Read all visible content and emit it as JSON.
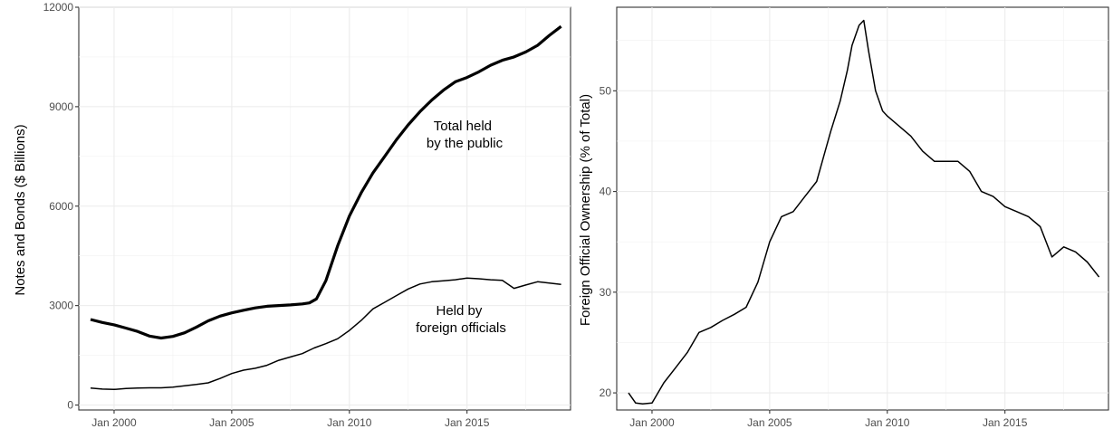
{
  "chart_data": [
    {
      "type": "line",
      "title": "",
      "xlabel": "",
      "ylabel": "Notes and Bonds ($ Billions)",
      "xlim": [
        1998.5,
        2019.4
      ],
      "ylim": [
        -150,
        12000
      ],
      "x_ticks": [
        2000,
        2005,
        2010,
        2015
      ],
      "x_tick_labels": [
        "Jan 2000",
        "Jan 2005",
        "Jan 2010",
        "Jan 2015"
      ],
      "y_ticks": [
        0,
        3000,
        6000,
        9000,
        12000
      ],
      "y_tick_labels": [
        "0",
        "3000",
        "6000",
        "9000",
        "12000"
      ],
      "grid": true,
      "legend": "none",
      "series": [
        {
          "values": [
            [
              1999.0,
              2580
            ],
            [
              1999.5,
              2490
            ],
            [
              2000.0,
              2420
            ],
            [
              2000.5,
              2320
            ],
            [
              2001.0,
              2220
            ],
            [
              2001.5,
              2080
            ],
            [
              2002.0,
              2020
            ],
            [
              2002.5,
              2070
            ],
            [
              2003.0,
              2180
            ],
            [
              2003.5,
              2350
            ],
            [
              2004.0,
              2540
            ],
            [
              2004.5,
              2680
            ],
            [
              2005.0,
              2780
            ],
            [
              2005.5,
              2860
            ],
            [
              2006.0,
              2930
            ],
            [
              2006.5,
              2980
            ],
            [
              2007.0,
              3000
            ],
            [
              2007.5,
              3020
            ],
            [
              2008.0,
              3050
            ],
            [
              2008.3,
              3080
            ],
            [
              2008.6,
              3200
            ],
            [
              2009.0,
              3750
            ],
            [
              2009.5,
              4800
            ],
            [
              2010.0,
              5700
            ],
            [
              2010.5,
              6400
            ],
            [
              2011.0,
              7000
            ],
            [
              2011.5,
              7500
            ],
            [
              2012.0,
              8000
            ],
            [
              2012.5,
              8450
            ],
            [
              2013.0,
              8850
            ],
            [
              2013.5,
              9200
            ],
            [
              2014.0,
              9500
            ],
            [
              2014.5,
              9750
            ],
            [
              2015.0,
              9880
            ],
            [
              2015.5,
              10050
            ],
            [
              2016.0,
              10250
            ],
            [
              2016.5,
              10400
            ],
            [
              2017.0,
              10500
            ],
            [
              2017.5,
              10650
            ],
            [
              2018.0,
              10850
            ],
            [
              2018.5,
              11150
            ],
            [
              2019.0,
              11420
            ]
          ],
          "annotation": "Total held\nby the public"
        },
        {
          "values": [
            [
              1999.0,
              510
            ],
            [
              1999.5,
              480
            ],
            [
              2000.0,
              470
            ],
            [
              2000.5,
              500
            ],
            [
              2001.0,
              510
            ],
            [
              2001.5,
              520
            ],
            [
              2002.0,
              520
            ],
            [
              2002.5,
              540
            ],
            [
              2003.0,
              580
            ],
            [
              2003.5,
              620
            ],
            [
              2004.0,
              670
            ],
            [
              2004.5,
              800
            ],
            [
              2005.0,
              950
            ],
            [
              2005.5,
              1050
            ],
            [
              2006.0,
              1110
            ],
            [
              2006.5,
              1200
            ],
            [
              2007.0,
              1350
            ],
            [
              2007.5,
              1450
            ],
            [
              2008.0,
              1550
            ],
            [
              2008.5,
              1720
            ],
            [
              2009.0,
              1850
            ],
            [
              2009.5,
              2000
            ],
            [
              2010.0,
              2250
            ],
            [
              2010.5,
              2550
            ],
            [
              2011.0,
              2900
            ],
            [
              2011.5,
              3100
            ],
            [
              2012.0,
              3300
            ],
            [
              2012.5,
              3500
            ],
            [
              2013.0,
              3650
            ],
            [
              2013.5,
              3720
            ],
            [
              2014.0,
              3750
            ],
            [
              2014.5,
              3780
            ],
            [
              2015.0,
              3830
            ],
            [
              2015.5,
              3810
            ],
            [
              2016.0,
              3780
            ],
            [
              2016.5,
              3760
            ],
            [
              2017.0,
              3520
            ],
            [
              2017.5,
              3620
            ],
            [
              2018.0,
              3720
            ],
            [
              2018.5,
              3680
            ],
            [
              2019.0,
              3640
            ]
          ],
          "annotation": "Held by\nforeign officials"
        }
      ]
    },
    {
      "type": "line",
      "title": "",
      "xlabel": "",
      "ylabel": "Foreign Official Ownership (% of Total)",
      "xlim": [
        1998.5,
        2019.4
      ],
      "ylim": [
        18.3,
        58.3
      ],
      "x_ticks": [
        2000,
        2005,
        2010,
        2015
      ],
      "x_tick_labels": [
        "Jan 2000",
        "Jan 2005",
        "Jan 2010",
        "Jan 2015"
      ],
      "y_ticks": [
        20,
        30,
        40,
        50
      ],
      "y_tick_labels": [
        "20",
        "30",
        "40",
        "50"
      ],
      "grid": true,
      "legend": "none",
      "series": [
        {
          "values": [
            [
              1999.0,
              20.0
            ],
            [
              1999.3,
              19.0
            ],
            [
              1999.6,
              18.9
            ],
            [
              2000.0,
              19.0
            ],
            [
              2000.5,
              21.0
            ],
            [
              2001.0,
              22.5
            ],
            [
              2001.5,
              24.0
            ],
            [
              2002.0,
              26.0
            ],
            [
              2002.5,
              26.5
            ],
            [
              2003.0,
              27.2
            ],
            [
              2003.5,
              27.8
            ],
            [
              2004.0,
              28.5
            ],
            [
              2004.5,
              31.0
            ],
            [
              2005.0,
              35.0
            ],
            [
              2005.5,
              37.5
            ],
            [
              2006.0,
              38.0
            ],
            [
              2006.5,
              39.5
            ],
            [
              2007.0,
              41.0
            ],
            [
              2007.3,
              43.5
            ],
            [
              2007.6,
              46.0
            ],
            [
              2008.0,
              49.0
            ],
            [
              2008.3,
              52.0
            ],
            [
              2008.5,
              54.5
            ],
            [
              2008.8,
              56.5
            ],
            [
              2009.0,
              57.0
            ],
            [
              2009.2,
              54.0
            ],
            [
              2009.5,
              50.0
            ],
            [
              2009.8,
              48.0
            ],
            [
              2010.0,
              47.5
            ],
            [
              2010.5,
              46.5
            ],
            [
              2011.0,
              45.5
            ],
            [
              2011.5,
              44.0
            ],
            [
              2012.0,
              43.0
            ],
            [
              2012.5,
              43.0
            ],
            [
              2013.0,
              43.0
            ],
            [
              2013.5,
              42.0
            ],
            [
              2014.0,
              40.0
            ],
            [
              2014.5,
              39.5
            ],
            [
              2015.0,
              38.5
            ],
            [
              2015.5,
              38.0
            ],
            [
              2016.0,
              37.5
            ],
            [
              2016.5,
              36.5
            ],
            [
              2017.0,
              33.5
            ],
            [
              2017.5,
              34.5
            ],
            [
              2018.0,
              34.0
            ],
            [
              2018.5,
              33.0
            ],
            [
              2019.0,
              31.5
            ]
          ]
        }
      ]
    }
  ]
}
